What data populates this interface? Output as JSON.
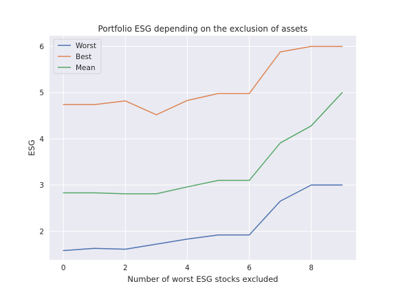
{
  "chart_data": {
    "type": "line",
    "title": "Portfolio ESG depending on the exclusion of assets",
    "xlabel": "Number of worst ESG stocks excluded",
    "ylabel": "ESG",
    "x": [
      0,
      1,
      2,
      3,
      4,
      5,
      6,
      7,
      8,
      9
    ],
    "xlim": [
      -0.45,
      9.45
    ],
    "ylim": [
      1.38,
      6.23
    ],
    "xticks": [
      "0",
      "2",
      "4",
      "6",
      "8"
    ],
    "yticks": [
      "2",
      "3",
      "4",
      "5",
      "6"
    ],
    "grid": true,
    "legend_position": "top-left",
    "series": [
      {
        "name": "Worst",
        "color": "#4c72b0",
        "values": [
          1.58,
          1.63,
          1.61,
          1.72,
          1.83,
          1.92,
          1.92,
          2.65,
          3.0,
          3.0
        ]
      },
      {
        "name": "Best",
        "color": "#dd8452",
        "values": [
          4.74,
          4.74,
          4.82,
          4.52,
          4.83,
          4.98,
          4.98,
          5.88,
          6.0,
          6.0
        ]
      },
      {
        "name": "Mean",
        "color": "#55a868",
        "values": [
          2.83,
          2.83,
          2.81,
          2.81,
          2.96,
          3.1,
          3.1,
          3.91,
          4.28,
          5.0
        ]
      }
    ]
  }
}
